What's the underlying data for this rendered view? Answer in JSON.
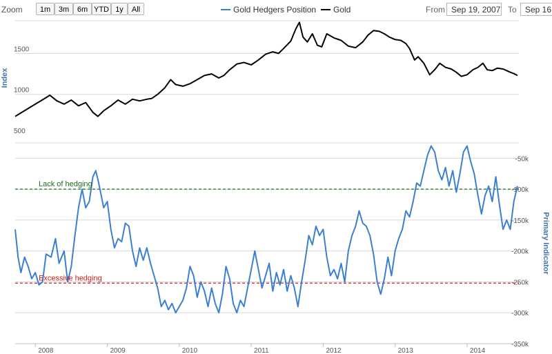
{
  "toolbar": {
    "zoom_label": "Zoom",
    "zoom_buttons": [
      "1m",
      "3m",
      "6m",
      "YTD",
      "1y",
      "All"
    ],
    "from_label": "From",
    "from_value": "Sep 19, 2007",
    "to_label": "To",
    "to_value": "Sep 16,"
  },
  "legend": [
    {
      "name": "Gold Hedgers Position",
      "color": "#3a7fd0"
    },
    {
      "name": "Gold",
      "color": "#000000"
    }
  ],
  "chart_data": [
    {
      "type": "line",
      "ylabel": "Index",
      "ylim": [
        500,
        1900
      ],
      "y_ticks": [
        500,
        1000,
        1500
      ],
      "x_tick_labels": [
        "2008",
        "2009",
        "2010",
        "2011",
        "2012",
        "2013",
        "2014"
      ],
      "series": [
        {
          "name": "Gold",
          "color": "#000000",
          "points": [
            [
              2007.72,
              730
            ],
            [
              2007.85,
              800
            ],
            [
              2008.0,
              880
            ],
            [
              2008.15,
              960
            ],
            [
              2008.2,
              990
            ],
            [
              2008.3,
              920
            ],
            [
              2008.4,
              880
            ],
            [
              2008.5,
              930
            ],
            [
              2008.6,
              860
            ],
            [
              2008.7,
              900
            ],
            [
              2008.8,
              780
            ],
            [
              2008.87,
              730
            ],
            [
              2008.95,
              800
            ],
            [
              2009.05,
              860
            ],
            [
              2009.15,
              930
            ],
            [
              2009.25,
              880
            ],
            [
              2009.35,
              940
            ],
            [
              2009.45,
              920
            ],
            [
              2009.55,
              940
            ],
            [
              2009.62,
              950
            ],
            [
              2009.7,
              1000
            ],
            [
              2009.8,
              1080
            ],
            [
              2009.88,
              1180
            ],
            [
              2009.95,
              1120
            ],
            [
              2010.05,
              1100
            ],
            [
              2010.15,
              1130
            ],
            [
              2010.25,
              1180
            ],
            [
              2010.35,
              1230
            ],
            [
              2010.45,
              1250
            ],
            [
              2010.55,
              1200
            ],
            [
              2010.62,
              1230
            ],
            [
              2010.7,
              1300
            ],
            [
              2010.8,
              1370
            ],
            [
              2010.9,
              1390
            ],
            [
              2011.0,
              1360
            ],
            [
              2011.1,
              1420
            ],
            [
              2011.2,
              1490
            ],
            [
              2011.3,
              1520
            ],
            [
              2011.38,
              1500
            ],
            [
              2011.45,
              1560
            ],
            [
              2011.55,
              1650
            ],
            [
              2011.62,
              1800
            ],
            [
              2011.67,
              1880
            ],
            [
              2011.72,
              1700
            ],
            [
              2011.78,
              1640
            ],
            [
              2011.85,
              1740
            ],
            [
              2011.92,
              1600
            ],
            [
              2011.98,
              1580
            ],
            [
              2012.05,
              1740
            ],
            [
              2012.15,
              1690
            ],
            [
              2012.25,
              1660
            ],
            [
              2012.35,
              1590
            ],
            [
              2012.45,
              1570
            ],
            [
              2012.55,
              1640
            ],
            [
              2012.62,
              1720
            ],
            [
              2012.7,
              1780
            ],
            [
              2012.78,
              1770
            ],
            [
              2012.85,
              1740
            ],
            [
              2012.92,
              1700
            ],
            [
              2013.0,
              1670
            ],
            [
              2013.08,
              1660
            ],
            [
              2013.15,
              1620
            ],
            [
              2013.2,
              1560
            ],
            [
              2013.27,
              1420
            ],
            [
              2013.32,
              1460
            ],
            [
              2013.4,
              1380
            ],
            [
              2013.48,
              1240
            ],
            [
              2013.55,
              1300
            ],
            [
              2013.62,
              1380
            ],
            [
              2013.7,
              1330
            ],
            [
              2013.78,
              1310
            ],
            [
              2013.85,
              1270
            ],
            [
              2013.92,
              1220
            ],
            [
              2014.0,
              1240
            ],
            [
              2014.08,
              1300
            ],
            [
              2014.15,
              1330
            ],
            [
              2014.22,
              1380
            ],
            [
              2014.28,
              1300
            ],
            [
              2014.35,
              1290
            ],
            [
              2014.42,
              1320
            ],
            [
              2014.5,
              1310
            ],
            [
              2014.55,
              1290
            ],
            [
              2014.6,
              1270
            ],
            [
              2014.66,
              1250
            ],
            [
              2014.7,
              1230
            ]
          ]
        }
      ]
    },
    {
      "type": "line",
      "ylabel": "Primary Indicator",
      "ylim": [
        -350000,
        -25000
      ],
      "y_tick_labels": [
        "-50k",
        "-100k",
        "-150k",
        "-200k",
        "-250k",
        "-300k",
        "-350k"
      ],
      "y_ticks": [
        -50000,
        -100000,
        -150000,
        -200000,
        -250000,
        -300000,
        -350000
      ],
      "x_tick_labels": [
        "2008",
        "2009",
        "2010",
        "2011",
        "2012",
        "2013",
        "2014"
      ],
      "series": [
        {
          "name": "Gold Hedgers Position",
          "color": "#3a7fd0",
          "points": [
            [
              2007.72,
              -165000
            ],
            [
              2007.76,
              -210000
            ],
            [
              2007.8,
              -235000
            ],
            [
              2007.85,
              -210000
            ],
            [
              2007.9,
              -225000
            ],
            [
              2007.95,
              -245000
            ],
            [
              2008.0,
              -235000
            ],
            [
              2008.05,
              -255000
            ],
            [
              2008.1,
              -250000
            ],
            [
              2008.15,
              -205000
            ],
            [
              2008.22,
              -210000
            ],
            [
              2008.28,
              -180000
            ],
            [
              2008.33,
              -220000
            ],
            [
              2008.4,
              -200000
            ],
            [
              2008.45,
              -250000
            ],
            [
              2008.5,
              -225000
            ],
            [
              2008.55,
              -175000
            ],
            [
              2008.6,
              -130000
            ],
            [
              2008.65,
              -100000
            ],
            [
              2008.7,
              -130000
            ],
            [
              2008.75,
              -120000
            ],
            [
              2008.8,
              -80000
            ],
            [
              2008.84,
              -70000
            ],
            [
              2008.88,
              -90000
            ],
            [
              2008.95,
              -130000
            ],
            [
              2009.0,
              -120000
            ],
            [
              2009.05,
              -165000
            ],
            [
              2009.1,
              -195000
            ],
            [
              2009.15,
              -180000
            ],
            [
              2009.2,
              -185000
            ],
            [
              2009.25,
              -155000
            ],
            [
              2009.3,
              -160000
            ],
            [
              2009.35,
              -200000
            ],
            [
              2009.4,
              -225000
            ],
            [
              2009.45,
              -195000
            ],
            [
              2009.5,
              -215000
            ],
            [
              2009.55,
              -195000
            ],
            [
              2009.6,
              -220000
            ],
            [
              2009.65,
              -240000
            ],
            [
              2009.7,
              -260000
            ],
            [
              2009.75,
              -290000
            ],
            [
              2009.8,
              -280000
            ],
            [
              2009.85,
              -295000
            ],
            [
              2009.9,
              -285000
            ],
            [
              2009.95,
              -300000
            ],
            [
              2010.0,
              -290000
            ],
            [
              2010.05,
              -280000
            ],
            [
              2010.1,
              -260000
            ],
            [
              2010.15,
              -225000
            ],
            [
              2010.2,
              -240000
            ],
            [
              2010.25,
              -275000
            ],
            [
              2010.3,
              -250000
            ],
            [
              2010.35,
              -265000
            ],
            [
              2010.4,
              -290000
            ],
            [
              2010.45,
              -260000
            ],
            [
              2010.5,
              -285000
            ],
            [
              2010.55,
              -300000
            ],
            [
              2010.6,
              -270000
            ],
            [
              2010.65,
              -225000
            ],
            [
              2010.7,
              -245000
            ],
            [
              2010.75,
              -285000
            ],
            [
              2010.8,
              -300000
            ],
            [
              2010.85,
              -280000
            ],
            [
              2010.9,
              -290000
            ],
            [
              2010.95,
              -260000
            ],
            [
              2011.0,
              -230000
            ],
            [
              2011.05,
              -200000
            ],
            [
              2011.1,
              -230000
            ],
            [
              2011.15,
              -260000
            ],
            [
              2011.2,
              -240000
            ],
            [
              2011.25,
              -220000
            ],
            [
              2011.3,
              -265000
            ],
            [
              2011.35,
              -235000
            ],
            [
              2011.4,
              -255000
            ],
            [
              2011.45,
              -230000
            ],
            [
              2011.5,
              -265000
            ],
            [
              2011.55,
              -240000
            ],
            [
              2011.6,
              -260000
            ],
            [
              2011.65,
              -290000
            ],
            [
              2011.7,
              -250000
            ],
            [
              2011.75,
              -215000
            ],
            [
              2011.8,
              -175000
            ],
            [
              2011.85,
              -190000
            ],
            [
              2011.9,
              -160000
            ],
            [
              2011.95,
              -175000
            ],
            [
              2012.0,
              -165000
            ],
            [
              2012.05,
              -210000
            ],
            [
              2012.1,
              -240000
            ],
            [
              2012.15,
              -230000
            ],
            [
              2012.2,
              -245000
            ],
            [
              2012.25,
              -220000
            ],
            [
              2012.3,
              -250000
            ],
            [
              2012.35,
              -200000
            ],
            [
              2012.4,
              -175000
            ],
            [
              2012.45,
              -160000
            ],
            [
              2012.5,
              -135000
            ],
            [
              2012.55,
              -155000
            ],
            [
              2012.6,
              -160000
            ],
            [
              2012.65,
              -175000
            ],
            [
              2012.7,
              -205000
            ],
            [
              2012.75,
              -250000
            ],
            [
              2012.8,
              -270000
            ],
            [
              2012.85,
              -245000
            ],
            [
              2012.9,
              -210000
            ],
            [
              2012.95,
              -240000
            ],
            [
              2013.0,
              -200000
            ],
            [
              2013.05,
              -180000
            ],
            [
              2013.1,
              -165000
            ],
            [
              2013.15,
              -135000
            ],
            [
              2013.2,
              -145000
            ],
            [
              2013.25,
              -120000
            ],
            [
              2013.3,
              -90000
            ],
            [
              2013.35,
              -95000
            ],
            [
              2013.4,
              -70000
            ],
            [
              2013.45,
              -45000
            ],
            [
              2013.5,
              -30000
            ],
            [
              2013.55,
              -40000
            ],
            [
              2013.6,
              -70000
            ],
            [
              2013.65,
              -85000
            ],
            [
              2013.7,
              -65000
            ],
            [
              2013.75,
              -95000
            ],
            [
              2013.8,
              -70000
            ],
            [
              2013.85,
              -105000
            ],
            [
              2013.9,
              -75000
            ],
            [
              2013.95,
              -40000
            ],
            [
              2014.0,
              -30000
            ],
            [
              2014.05,
              -55000
            ],
            [
              2014.1,
              -75000
            ],
            [
              2014.15,
              -110000
            ],
            [
              2014.2,
              -140000
            ],
            [
              2014.25,
              -110000
            ],
            [
              2014.3,
              -95000
            ],
            [
              2014.35,
              -120000
            ],
            [
              2014.4,
              -80000
            ],
            [
              2014.45,
              -125000
            ],
            [
              2014.5,
              -165000
            ],
            [
              2014.55,
              -150000
            ],
            [
              2014.6,
              -165000
            ],
            [
              2014.65,
              -120000
            ],
            [
              2014.7,
              -95000
            ]
          ]
        }
      ],
      "annotations": [
        {
          "text": "Lack of hedging",
          "y": -100000,
          "color": "#1f6b1f"
        },
        {
          "text": "Excessive hedging",
          "y": -252000,
          "color": "#d11a1a"
        }
      ]
    }
  ]
}
